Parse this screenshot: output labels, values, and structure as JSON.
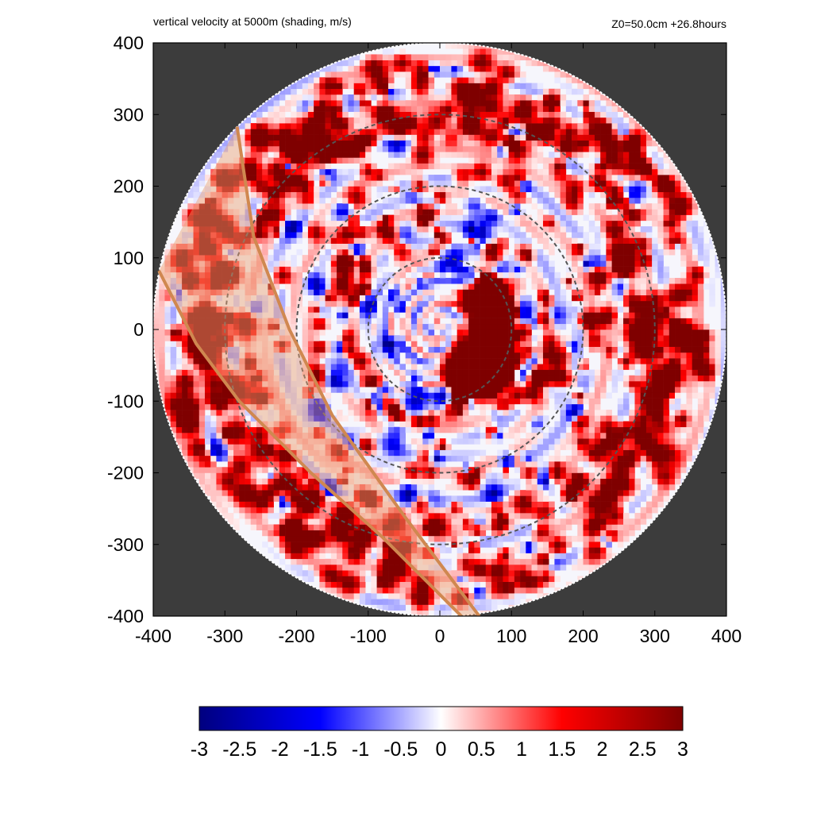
{
  "chart_data": {
    "type": "heatmap",
    "title": "vertical velocity at 5000m (shading, m/s)",
    "subtitle": "Z0=50.0cm  +26.8hours",
    "xlabel": "",
    "ylabel": "",
    "xlim": [
      -400,
      400
    ],
    "ylim": [
      -400,
      400
    ],
    "x_ticks": [
      -400,
      -300,
      -200,
      -100,
      0,
      100,
      200,
      300,
      400
    ],
    "y_ticks": [
      -400,
      -300,
      -200,
      -100,
      0,
      100,
      200,
      300,
      400
    ],
    "x_tick_labels": [
      "-400",
      "-300",
      "-200",
      "-100",
      "0",
      "100",
      "200",
      "300",
      "400"
    ],
    "y_tick_labels": [
      "400",
      "300",
      "200",
      "100",
      "0",
      "-100",
      "-200",
      "-300",
      "-400"
    ],
    "domain_radius": 400,
    "range_rings": [
      100,
      200,
      300
    ],
    "colorbar": {
      "min": -3,
      "max": 3,
      "ticks": [
        -3,
        -2.5,
        -2,
        -1.5,
        -1,
        -0.5,
        0,
        0.5,
        1,
        1.5,
        2,
        2.5,
        3
      ],
      "tick_labels": [
        "-3",
        "-2.5",
        "-2",
        "-1.5",
        "-1",
        "-0.5",
        "0",
        "0.5",
        "1",
        "1.5",
        "2",
        "2.5",
        "3"
      ],
      "colors": [
        "#00007f",
        "#0000ff",
        "#ffffff",
        "#ff0000",
        "#7f0000"
      ]
    },
    "swath_band": {
      "edge1": [
        [
          -283,
          283
        ],
        [
          -260,
          130
        ],
        [
          -210,
          0
        ],
        [
          -150,
          -120
        ],
        [
          -50,
          -260
        ],
        [
          55,
          -400
        ]
      ],
      "edge2": [
        [
          -392,
          82
        ],
        [
          -340,
          -20
        ],
        [
          -280,
          -100
        ],
        [
          -180,
          -200
        ],
        [
          -80,
          -290
        ],
        [
          30,
          -400
        ]
      ],
      "color": "#e8a070"
    },
    "background_color": "#3c3c3c"
  }
}
